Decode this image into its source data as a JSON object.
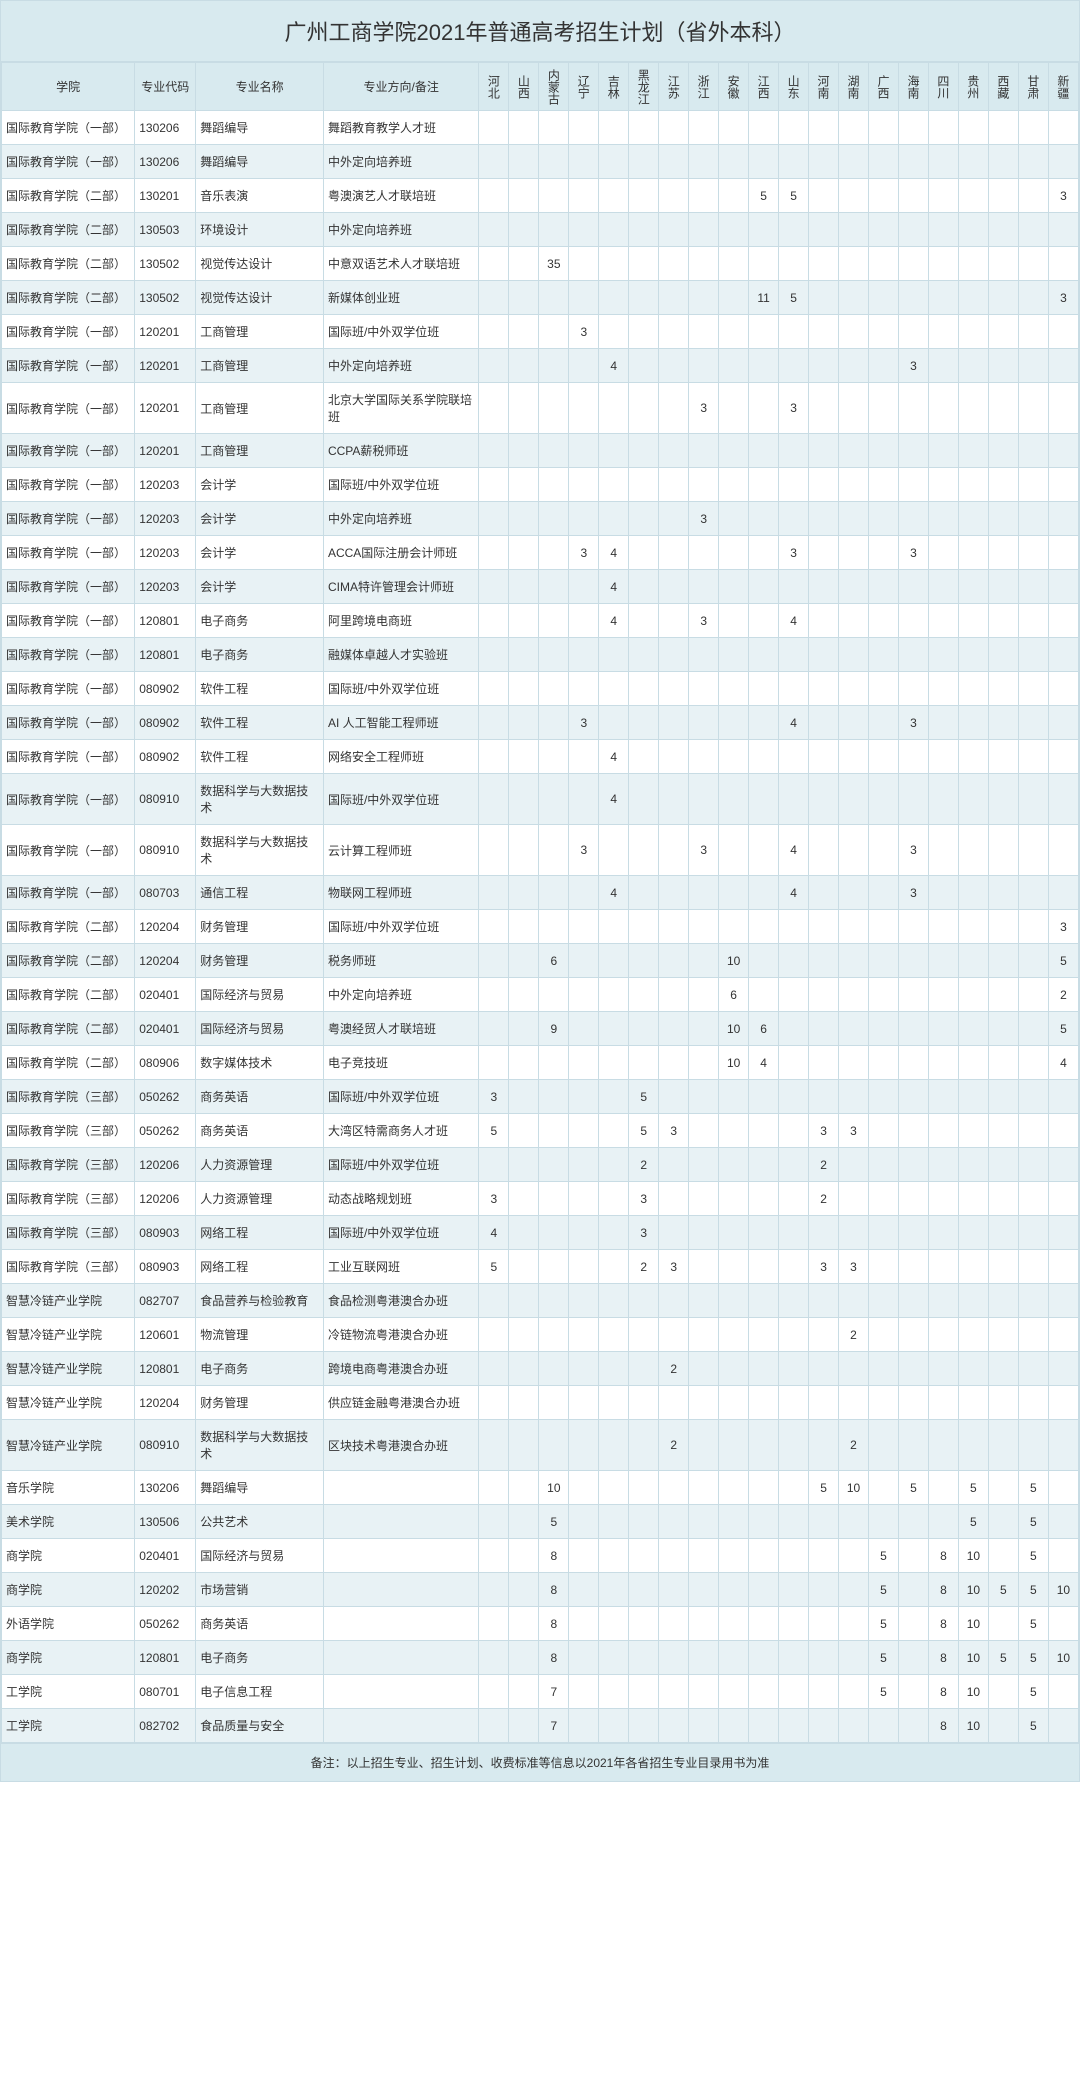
{
  "title": "广州工商学院2021年普通高考招生计划（省外本科）",
  "footer": "备注：以上招生专业、招生计划、收费标准等信息以2021年各省招生专业目录用书为准",
  "headers": {
    "college": "学院",
    "code": "专业代码",
    "major": "专业名称",
    "direction": "专业方向/备注",
    "provinces": [
      "河北",
      "山西",
      "内蒙古",
      "辽宁",
      "吉林",
      "黑龙江",
      "江苏",
      "浙江",
      "安徽",
      "江西",
      "山东",
      "河南",
      "湖南",
      "广西",
      "海南",
      "四川",
      "贵州",
      "西藏",
      "甘肃",
      "新疆"
    ]
  },
  "rows": [
    {
      "college": "国际教育学院（一部）",
      "code": "130206",
      "major": "舞蹈编导",
      "dir": "舞蹈教育教学人才班",
      "v": [
        "",
        "",
        "",
        "",
        "",
        "",
        "",
        "",
        "",
        "",
        "",
        "",
        "",
        "",
        "",
        "",
        "",
        "",
        "",
        ""
      ]
    },
    {
      "college": "国际教育学院（一部）",
      "code": "130206",
      "major": "舞蹈编导",
      "dir": "中外定向培养班",
      "v": [
        "",
        "",
        "",
        "",
        "",
        "",
        "",
        "",
        "",
        "",
        "",
        "",
        "",
        "",
        "",
        "",
        "",
        "",
        "",
        ""
      ]
    },
    {
      "college": "国际教育学院（二部）",
      "code": "130201",
      "major": "音乐表演",
      "dir": "粤澳演艺人才联培班",
      "v": [
        "",
        "",
        "",
        "",
        "",
        "",
        "",
        "",
        "",
        "5",
        "5",
        "",
        "",
        "",
        "",
        "",
        "",
        "",
        "",
        "3"
      ]
    },
    {
      "college": "国际教育学院（二部）",
      "code": "130503",
      "major": "环境设计",
      "dir": "中外定向培养班",
      "v": [
        "",
        "",
        "",
        "",
        "",
        "",
        "",
        "",
        "",
        "",
        "",
        "",
        "",
        "",
        "",
        "",
        "",
        "",
        "",
        ""
      ]
    },
    {
      "college": "国际教育学院（二部）",
      "code": "130502",
      "major": "视觉传达设计",
      "dir": "中意双语艺术人才联培班",
      "v": [
        "",
        "",
        "35",
        "",
        "",
        "",
        "",
        "",
        "",
        "",
        "",
        "",
        "",
        "",
        "",
        "",
        "",
        "",
        "",
        ""
      ]
    },
    {
      "college": "国际教育学院（二部）",
      "code": "130502",
      "major": "视觉传达设计",
      "dir": "新媒体创业班",
      "v": [
        "",
        "",
        "",
        "",
        "",
        "",
        "",
        "",
        "",
        "11",
        "5",
        "",
        "",
        "",
        "",
        "",
        "",
        "",
        "",
        "3"
      ]
    },
    {
      "college": "国际教育学院（一部）",
      "code": "120201",
      "major": "工商管理",
      "dir": "国际班/中外双学位班",
      "v": [
        "",
        "",
        "",
        "3",
        "",
        "",
        "",
        "",
        "",
        "",
        "",
        "",
        "",
        "",
        "",
        "",
        "",
        "",
        "",
        ""
      ]
    },
    {
      "college": "国际教育学院（一部）",
      "code": "120201",
      "major": "工商管理",
      "dir": "中外定向培养班",
      "v": [
        "",
        "",
        "",
        "",
        "4",
        "",
        "",
        "",
        "",
        "",
        "",
        "",
        "",
        "",
        "3",
        "",
        "",
        "",
        "",
        ""
      ]
    },
    {
      "college": "国际教育学院（一部）",
      "code": "120201",
      "major": "工商管理",
      "dir": "北京大学国际关系学院联培班",
      "v": [
        "",
        "",
        "",
        "",
        "",
        "",
        "",
        "3",
        "",
        "",
        "3",
        "",
        "",
        "",
        "",
        "",
        "",
        "",
        "",
        ""
      ]
    },
    {
      "college": "国际教育学院（一部）",
      "code": "120201",
      "major": "工商管理",
      "dir": "CCPA薪税师班",
      "v": [
        "",
        "",
        "",
        "",
        "",
        "",
        "",
        "",
        "",
        "",
        "",
        "",
        "",
        "",
        "",
        "",
        "",
        "",
        "",
        ""
      ]
    },
    {
      "college": "国际教育学院（一部）",
      "code": "120203",
      "major": "会计学",
      "dir": "国际班/中外双学位班",
      "v": [
        "",
        "",
        "",
        "",
        "",
        "",
        "",
        "",
        "",
        "",
        "",
        "",
        "",
        "",
        "",
        "",
        "",
        "",
        "",
        ""
      ]
    },
    {
      "college": "国际教育学院（一部）",
      "code": "120203",
      "major": "会计学",
      "dir": "中外定向培养班",
      "v": [
        "",
        "",
        "",
        "",
        "",
        "",
        "",
        "3",
        "",
        "",
        "",
        "",
        "",
        "",
        "",
        "",
        "",
        "",
        "",
        ""
      ]
    },
    {
      "college": "国际教育学院（一部）",
      "code": "120203",
      "major": "会计学",
      "dir": "ACCA国际注册会计师班",
      "v": [
        "",
        "",
        "",
        "3",
        "4",
        "",
        "",
        "",
        "",
        "",
        "3",
        "",
        "",
        "",
        "3",
        "",
        "",
        "",
        "",
        ""
      ]
    },
    {
      "college": "国际教育学院（一部）",
      "code": "120203",
      "major": "会计学",
      "dir": "CIMA特许管理会计师班",
      "v": [
        "",
        "",
        "",
        "",
        "4",
        "",
        "",
        "",
        "",
        "",
        "",
        "",
        "",
        "",
        "",
        "",
        "",
        "",
        "",
        ""
      ]
    },
    {
      "college": "国际教育学院（一部）",
      "code": "120801",
      "major": "电子商务",
      "dir": "阿里跨境电商班",
      "v": [
        "",
        "",
        "",
        "",
        "4",
        "",
        "",
        "3",
        "",
        "",
        "4",
        "",
        "",
        "",
        "",
        "",
        "",
        "",
        "",
        ""
      ]
    },
    {
      "college": "国际教育学院（一部）",
      "code": "120801",
      "major": "电子商务",
      "dir": "融媒体卓越人才实验班",
      "v": [
        "",
        "",
        "",
        "",
        "",
        "",
        "",
        "",
        "",
        "",
        "",
        "",
        "",
        "",
        "",
        "",
        "",
        "",
        "",
        ""
      ]
    },
    {
      "college": "国际教育学院（一部）",
      "code": "080902",
      "major": "软件工程",
      "dir": "国际班/中外双学位班",
      "v": [
        "",
        "",
        "",
        "",
        "",
        "",
        "",
        "",
        "",
        "",
        "",
        "",
        "",
        "",
        "",
        "",
        "",
        "",
        "",
        ""
      ]
    },
    {
      "college": "国际教育学院（一部）",
      "code": "080902",
      "major": "软件工程",
      "dir": "AI 人工智能工程师班",
      "v": [
        "",
        "",
        "",
        "3",
        "",
        "",
        "",
        "",
        "",
        "",
        "4",
        "",
        "",
        "",
        "3",
        "",
        "",
        "",
        "",
        ""
      ]
    },
    {
      "college": "国际教育学院（一部）",
      "code": "080902",
      "major": "软件工程",
      "dir": "网络安全工程师班",
      "v": [
        "",
        "",
        "",
        "",
        "4",
        "",
        "",
        "",
        "",
        "",
        "",
        "",
        "",
        "",
        "",
        "",
        "",
        "",
        "",
        ""
      ]
    },
    {
      "college": "国际教育学院（一部）",
      "code": "080910",
      "major": "数据科学与大数据技术",
      "dir": "国际班/中外双学位班",
      "v": [
        "",
        "",
        "",
        "",
        "4",
        "",
        "",
        "",
        "",
        "",
        "",
        "",
        "",
        "",
        "",
        "",
        "",
        "",
        "",
        ""
      ]
    },
    {
      "college": "国际教育学院（一部）",
      "code": "080910",
      "major": "数据科学与大数据技术",
      "dir": "云计算工程师班",
      "v": [
        "",
        "",
        "",
        "3",
        "",
        "",
        "",
        "3",
        "",
        "",
        "4",
        "",
        "",
        "",
        "3",
        "",
        "",
        "",
        "",
        ""
      ]
    },
    {
      "college": "国际教育学院（一部）",
      "code": "080703",
      "major": "通信工程",
      "dir": "物联网工程师班",
      "v": [
        "",
        "",
        "",
        "",
        "4",
        "",
        "",
        "",
        "",
        "",
        "4",
        "",
        "",
        "",
        "3",
        "",
        "",
        "",
        "",
        ""
      ]
    },
    {
      "college": "国际教育学院（二部）",
      "code": "120204",
      "major": "财务管理",
      "dir": "国际班/中外双学位班",
      "v": [
        "",
        "",
        "",
        "",
        "",
        "",
        "",
        "",
        "",
        "",
        "",
        "",
        "",
        "",
        "",
        "",
        "",
        "",
        "",
        "3"
      ]
    },
    {
      "college": "国际教育学院（二部）",
      "code": "120204",
      "major": "财务管理",
      "dir": "税务师班",
      "v": [
        "",
        "",
        "6",
        "",
        "",
        "",
        "",
        "",
        "10",
        "",
        "",
        "",
        "",
        "",
        "",
        "",
        "",
        "",
        "",
        "5"
      ]
    },
    {
      "college": "国际教育学院（二部）",
      "code": "020401",
      "major": "国际经济与贸易",
      "dir": "中外定向培养班",
      "v": [
        "",
        "",
        "",
        "",
        "",
        "",
        "",
        "",
        "6",
        "",
        "",
        "",
        "",
        "",
        "",
        "",
        "",
        "",
        "",
        "2"
      ]
    },
    {
      "college": "国际教育学院（二部）",
      "code": "020401",
      "major": "国际经济与贸易",
      "dir": "粤澳经贸人才联培班",
      "v": [
        "",
        "",
        "9",
        "",
        "",
        "",
        "",
        "",
        "10",
        "6",
        "",
        "",
        "",
        "",
        "",
        "",
        "",
        "",
        "",
        "5"
      ]
    },
    {
      "college": "国际教育学院（二部）",
      "code": "080906",
      "major": "数字媒体技术",
      "dir": "电子竞技班",
      "v": [
        "",
        "",
        "",
        "",
        "",
        "",
        "",
        "",
        "10",
        "4",
        "",
        "",
        "",
        "",
        "",
        "",
        "",
        "",
        "",
        "4"
      ]
    },
    {
      "college": "国际教育学院（三部）",
      "code": "050262",
      "major": "商务英语",
      "dir": "国际班/中外双学位班",
      "v": [
        "3",
        "",
        "",
        "",
        "",
        "5",
        "",
        "",
        "",
        "",
        "",
        "",
        "",
        "",
        "",
        "",
        "",
        "",
        "",
        ""
      ]
    },
    {
      "college": "国际教育学院（三部）",
      "code": "050262",
      "major": "商务英语",
      "dir": "大湾区特需商务人才班",
      "v": [
        "5",
        "",
        "",
        "",
        "",
        "5",
        "3",
        "",
        "",
        "",
        "",
        "3",
        "3",
        "",
        "",
        "",
        "",
        "",
        "",
        ""
      ]
    },
    {
      "college": "国际教育学院（三部）",
      "code": "120206",
      "major": "人力资源管理",
      "dir": "国际班/中外双学位班",
      "v": [
        "",
        "",
        "",
        "",
        "",
        "2",
        "",
        "",
        "",
        "",
        "",
        "2",
        "",
        "",
        "",
        "",
        "",
        "",
        "",
        ""
      ]
    },
    {
      "college": "国际教育学院（三部）",
      "code": "120206",
      "major": "人力资源管理",
      "dir": "动态战略规划班",
      "v": [
        "3",
        "",
        "",
        "",
        "",
        "3",
        "",
        "",
        "",
        "",
        "",
        "2",
        "",
        "",
        "",
        "",
        "",
        "",
        "",
        ""
      ]
    },
    {
      "college": "国际教育学院（三部）",
      "code": "080903",
      "major": "网络工程",
      "dir": "国际班/中外双学位班",
      "v": [
        "4",
        "",
        "",
        "",
        "",
        "3",
        "",
        "",
        "",
        "",
        "",
        "",
        "",
        "",
        "",
        "",
        "",
        "",
        "",
        ""
      ]
    },
    {
      "college": "国际教育学院（三部）",
      "code": "080903",
      "major": "网络工程",
      "dir": "工业互联网班",
      "v": [
        "5",
        "",
        "",
        "",
        "",
        "2",
        "3",
        "",
        "",
        "",
        "",
        "3",
        "3",
        "",
        "",
        "",
        "",
        "",
        "",
        ""
      ]
    },
    {
      "college": "智慧冷链产业学院",
      "code": "082707",
      "major": "食品营养与检验教育",
      "dir": "食品检测粤港澳合办班",
      "v": [
        "",
        "",
        "",
        "",
        "",
        "",
        "",
        "",
        "",
        "",
        "",
        "",
        "",
        "",
        "",
        "",
        "",
        "",
        "",
        ""
      ]
    },
    {
      "college": "智慧冷链产业学院",
      "code": "120601",
      "major": "物流管理",
      "dir": "冷链物流粤港澳合办班",
      "v": [
        "",
        "",
        "",
        "",
        "",
        "",
        "",
        "",
        "",
        "",
        "",
        "",
        "2",
        "",
        "",
        "",
        "",
        "",
        "",
        ""
      ]
    },
    {
      "college": "智慧冷链产业学院",
      "code": "120801",
      "major": "电子商务",
      "dir": "跨境电商粤港澳合办班",
      "v": [
        "",
        "",
        "",
        "",
        "",
        "",
        "2",
        "",
        "",
        "",
        "",
        "",
        "",
        "",
        "",
        "",
        "",
        "",
        "",
        ""
      ]
    },
    {
      "college": "智慧冷链产业学院",
      "code": "120204",
      "major": "财务管理",
      "dir": "供应链金融粤港澳合办班",
      "v": [
        "",
        "",
        "",
        "",
        "",
        "",
        "",
        "",
        "",
        "",
        "",
        "",
        "",
        "",
        "",
        "",
        "",
        "",
        "",
        ""
      ]
    },
    {
      "college": "智慧冷链产业学院",
      "code": "080910",
      "major": "数据科学与大数据技术",
      "dir": "区块技术粤港澳合办班",
      "v": [
        "",
        "",
        "",
        "",
        "",
        "",
        "2",
        "",
        "",
        "",
        "",
        "",
        "2",
        "",
        "",
        "",
        "",
        "",
        "",
        ""
      ]
    },
    {
      "college": "音乐学院",
      "code": "130206",
      "major": "舞蹈编导",
      "dir": "",
      "v": [
        "",
        "",
        "10",
        "",
        "",
        "",
        "",
        "",
        "",
        "",
        "",
        "5",
        "10",
        "",
        "5",
        "",
        "5",
        "",
        "5",
        ""
      ]
    },
    {
      "college": "美术学院",
      "code": "130506",
      "major": "公共艺术",
      "dir": "",
      "v": [
        "",
        "",
        "5",
        "",
        "",
        "",
        "",
        "",
        "",
        "",
        "",
        "",
        "",
        "",
        "",
        "",
        "5",
        "",
        "5",
        ""
      ]
    },
    {
      "college": "商学院",
      "code": "020401",
      "major": "国际经济与贸易",
      "dir": "",
      "v": [
        "",
        "",
        "8",
        "",
        "",
        "",
        "",
        "",
        "",
        "",
        "",
        "",
        "",
        "5",
        "",
        "8",
        "10",
        "",
        "5",
        ""
      ]
    },
    {
      "college": "商学院",
      "code": "120202",
      "major": "市场营销",
      "dir": "",
      "v": [
        "",
        "",
        "8",
        "",
        "",
        "",
        "",
        "",
        "",
        "",
        "",
        "",
        "",
        "5",
        "",
        "8",
        "10",
        "5",
        "5",
        "10"
      ]
    },
    {
      "college": "外语学院",
      "code": "050262",
      "major": "商务英语",
      "dir": "",
      "v": [
        "",
        "",
        "8",
        "",
        "",
        "",
        "",
        "",
        "",
        "",
        "",
        "",
        "",
        "5",
        "",
        "8",
        "10",
        "",
        "5",
        ""
      ]
    },
    {
      "college": "商学院",
      "code": "120801",
      "major": "电子商务",
      "dir": "",
      "v": [
        "",
        "",
        "8",
        "",
        "",
        "",
        "",
        "",
        "",
        "",
        "",
        "",
        "",
        "5",
        "",
        "8",
        "10",
        "5",
        "5",
        "10"
      ]
    },
    {
      "college": "工学院",
      "code": "080701",
      "major": "电子信息工程",
      "dir": "",
      "v": [
        "",
        "",
        "7",
        "",
        "",
        "",
        "",
        "",
        "",
        "",
        "",
        "",
        "",
        "5",
        "",
        "8",
        "10",
        "",
        "5",
        ""
      ]
    },
    {
      "college": "工学院",
      "code": "082702",
      "major": "食品质量与安全",
      "dir": "",
      "v": [
        "",
        "",
        "7",
        "",
        "",
        "",
        "",
        "",
        "",
        "",
        "",
        "",
        "",
        "",
        "",
        "8",
        "10",
        "",
        "5",
        ""
      ]
    }
  ],
  "style": {
    "header_bg": "#d8eaef",
    "row_even_bg": "#e8f2f5",
    "row_odd_bg": "#ffffff",
    "border_color": "#c8dce4",
    "font_size": 12,
    "title_fontsize": 22
  }
}
